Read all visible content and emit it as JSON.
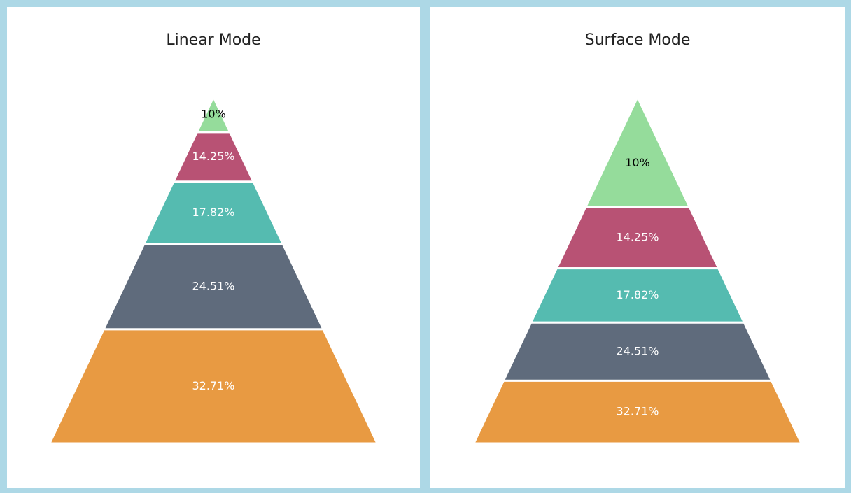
{
  "chart_data": [
    {
      "type": "pyramid",
      "mode": "linear",
      "title": "Linear Mode",
      "values": [
        10,
        14.25,
        17.82,
        24.51,
        32.71
      ],
      "value_labels": [
        "10%",
        "14.25%",
        "17.82%",
        "24.51%",
        "32.71%"
      ],
      "colors": [
        "#95dc9b",
        "#b85274",
        "#55bbb0",
        "#5f6b7c",
        "#e89a42"
      ],
      "label_colors": [
        "#000000",
        "#ffffff",
        "#ffffff",
        "#ffffff",
        "#ffffff"
      ]
    },
    {
      "type": "pyramid",
      "mode": "surface",
      "title": "Surface Mode",
      "values": [
        10,
        14.25,
        17.82,
        24.51,
        32.71
      ],
      "value_labels": [
        "10%",
        "14.25%",
        "17.82%",
        "24.51%",
        "32.71%"
      ],
      "colors": [
        "#95dc9b",
        "#b85274",
        "#55bbb0",
        "#5f6b7c",
        "#e89a42"
      ],
      "label_colors": [
        "#000000",
        "#ffffff",
        "#ffffff",
        "#ffffff",
        "#ffffff"
      ]
    }
  ]
}
